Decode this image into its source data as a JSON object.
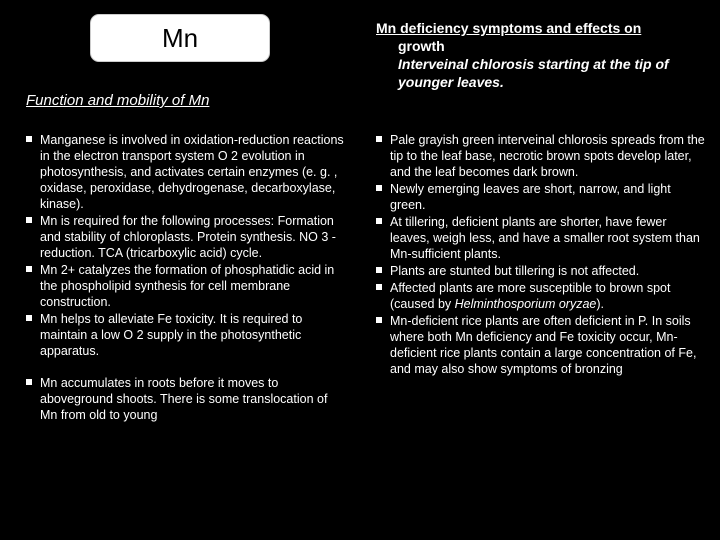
{
  "title": "Mn",
  "left": {
    "subheading": "Function and mobility of Mn",
    "items": [
      "  Manganese is involved in oxidation-reduction reactions in the electron transport system O 2 evolution in photosynthesis, and activates certain enzymes (e. g. , oxidase, peroxidase, dehydrogenase, decarboxylase, kinase).",
      "Mn is required for the following processes: Formation and stability of chloroplasts. Protein synthesis. NO 3 -reduction. TCA (tricarboxylic acid) cycle.",
      "Mn 2+ catalyzes the formation of phosphatidic acid in the phospholipid synthesis for cell membrane construction.",
      " Mn helps to alleviate Fe toxicity. It is required to maintain a low O 2 supply in the photosynthetic apparatus.",
      " Mn accumulates in roots before it moves to aboveground shoots. There is some translocation of Mn from old to young"
    ]
  },
  "right": {
    "heading_line1_a": "Mn deficiency symptoms and effects on",
    "heading_line1_b": "growth",
    "heading_line2": "Interveinal chlorosis starting at the tip of younger leaves.",
    "items": [
      "Pale grayish green interveinal chlorosis spreads from the tip to the leaf base, necrotic brown spots develop later, and the leaf becomes dark brown.",
      "Newly emerging leaves are short, narrow, and light green.",
      "At tillering, deficient plants are shorter, have fewer leaves, weigh less, and have a smaller root system than Mn-sufficient plants.",
      "Plants are stunted but tillering is not affected.",
      {
        "pre": "Affected plants are more susceptible to brown spot (caused by ",
        "ital": "Helminthosporium oryzae",
        "post": ")."
      },
      "Mn-deficient rice plants are often deficient in P. In soils where both Mn deficiency and Fe toxicity occur, Mn-deficient rice plants contain a large concentration of Fe, and may also show symptoms of bronzing"
    ]
  },
  "spacer_index_left": 4
}
